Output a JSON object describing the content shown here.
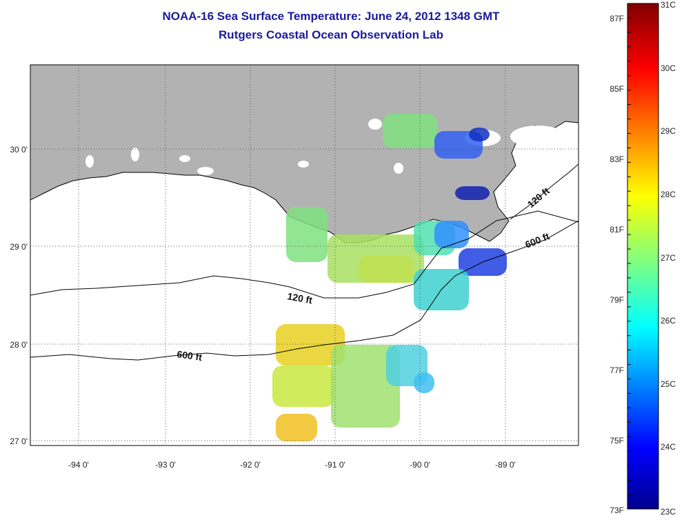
{
  "title": {
    "line1": "NOAA-16 Sea Surface Temperature:  June 24, 2012 1348 GMT",
    "line2": "Rutgers Coastal Ocean Observation Lab"
  },
  "map": {
    "lon_ticks": [
      "-94 0'",
      "-93 0'",
      "-92 0'",
      "-91 0'",
      "-90 0'",
      "-89 0'"
    ],
    "lat_ticks": [
      "30 0'",
      "29 0'",
      "28 0'",
      "27 0'"
    ],
    "isobath_labels": [
      "120 ft",
      "600 ft",
      "120 ft",
      "600 ft"
    ],
    "colors": {
      "land": "#b2b2b2",
      "ocean": "#ffffff",
      "grid": "#555555"
    }
  },
  "colorbar": {
    "fahrenheit_labels": [
      "87F",
      "85F",
      "83F",
      "81F",
      "79F",
      "77F",
      "75F",
      "73F"
    ],
    "celsius_labels": [
      "31C",
      "30C",
      "29C",
      "28C",
      "27C",
      "26C",
      "25C",
      "24C",
      "23C"
    ],
    "range_c": [
      23,
      31
    ],
    "colormap": "jet"
  },
  "chart_data": {
    "type": "heatmap",
    "title": "NOAA-16 Sea Surface Temperature:  June 24, 2012 1348 GMT",
    "subtitle": "Rutgers Coastal Ocean Observation Lab",
    "xlim": [
      -94.5,
      -88.3
    ],
    "ylim": [
      26.9,
      30.8
    ],
    "units": "C",
    "value_range": [
      23,
      31
    ]
  }
}
